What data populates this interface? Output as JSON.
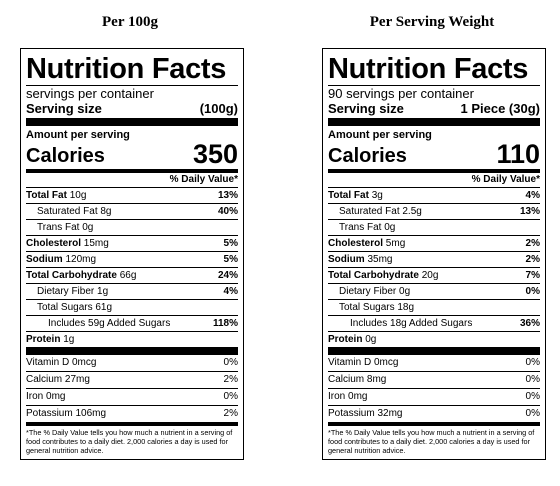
{
  "headings": [
    "Per 100g",
    "Per Serving Weight"
  ],
  "labels": [
    {
      "title": "Nutrition Facts",
      "servings_per_container": "servings per container",
      "serving_size_label": "Serving size",
      "serving_size_value": "(100g)",
      "amount_per_serving": "Amount per serving",
      "calories_label": "Calories",
      "calories_value": "350",
      "dv_header": "% Daily Value*",
      "total_fat": "Total Fat",
      "total_fat_amt": "10g",
      "total_fat_pct": "13%",
      "sat_fat": "Saturated Fat 8g",
      "sat_fat_pct": "40%",
      "trans_fat": "Trans Fat 0g",
      "cholesterol": "Cholesterol",
      "cholesterol_amt": "15mg",
      "cholesterol_pct": "5%",
      "sodium": "Sodium",
      "sodium_amt": "120mg",
      "sodium_pct": "5%",
      "carb": "Total Carbohydrate",
      "carb_amt": "66g",
      "carb_pct": "24%",
      "fiber": "Dietary Fiber 1g",
      "fiber_pct": "4%",
      "sugars": "Total Sugars 61g",
      "added_sugars": "Includes 59g Added Sugars",
      "added_sugars_pct": "118%",
      "protein": "Protein",
      "protein_amt": "1g",
      "vitd": "Vitamin D 0mcg",
      "vitd_pct": "0%",
      "calcium": "Calcium 27mg",
      "calcium_pct": "2%",
      "iron": "Iron 0mg",
      "iron_pct": "0%",
      "potassium": "Potassium 106mg",
      "potassium_pct": "2%",
      "footnote": "*The % Daily Value tells you how much a nutrient in a serving of food contributes to a daily diet. 2,000 calories a day is used for general nutrition advice."
    },
    {
      "title": "Nutrition Facts",
      "servings_per_container": "90 servings per container",
      "serving_size_label": "Serving size",
      "serving_size_value": "1 Piece (30g)",
      "amount_per_serving": "Amount per serving",
      "calories_label": "Calories",
      "calories_value": "110",
      "dv_header": "% Daily Value*",
      "total_fat": "Total Fat",
      "total_fat_amt": "3g",
      "total_fat_pct": "4%",
      "sat_fat": "Saturated Fat 2.5g",
      "sat_fat_pct": "13%",
      "trans_fat": "Trans Fat 0g",
      "cholesterol": "Cholesterol",
      "cholesterol_amt": "5mg",
      "cholesterol_pct": "2%",
      "sodium": "Sodium",
      "sodium_amt": "35mg",
      "sodium_pct": "2%",
      "carb": "Total Carbohydrate",
      "carb_amt": "20g",
      "carb_pct": "7%",
      "fiber": "Dietary Fiber 0g",
      "fiber_pct": "0%",
      "sugars": "Total Sugars 18g",
      "added_sugars": "Includes 18g Added Sugars",
      "added_sugars_pct": "36%",
      "protein": "Protein",
      "protein_amt": "0g",
      "vitd": "Vitamin D 0mcg",
      "vitd_pct": "0%",
      "calcium": "Calcium 8mg",
      "calcium_pct": "0%",
      "iron": "Iron 0mg",
      "iron_pct": "0%",
      "potassium": "Potassium 32mg",
      "potassium_pct": "0%",
      "footnote": "*The % Daily Value tells you how much a nutrient in a serving of food contributes to a daily diet. 2,000 calories a day is used for general nutrition advice."
    }
  ]
}
